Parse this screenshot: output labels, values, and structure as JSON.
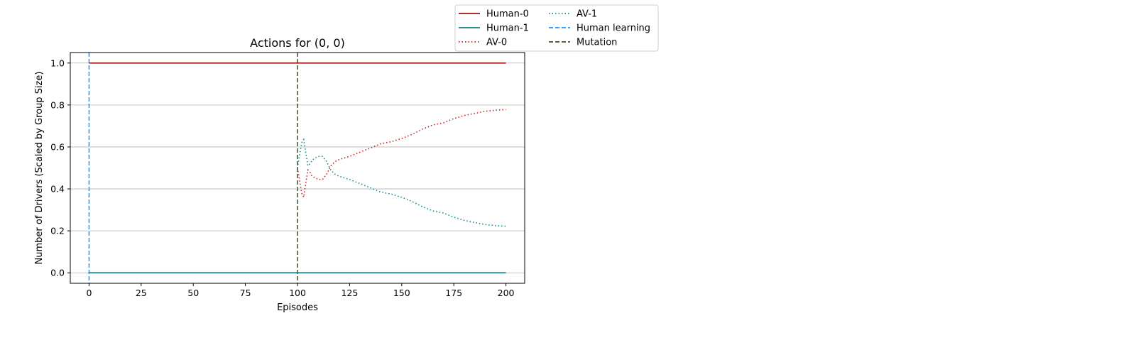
{
  "chart_data": {
    "type": "line",
    "title": "Actions for (0, 0)",
    "xlabel": "Episodes",
    "ylabel": "Number of Drivers (Scaled by Group Size)",
    "xlim": [
      -9,
      209
    ],
    "ylim": [
      -0.05,
      1.05
    ],
    "xticks": [
      0,
      25,
      50,
      75,
      100,
      125,
      150,
      175,
      200
    ],
    "yticks": [
      0.0,
      0.2,
      0.4,
      0.6,
      0.8,
      1.0
    ],
    "ytick_labels": [
      "0.0",
      "0.2",
      "0.4",
      "0.6",
      "0.8",
      "1.0"
    ],
    "grid": "horizontal",
    "legend_position": "outside-top-right",
    "series": [
      {
        "name": "Human-0",
        "color": "#a01010",
        "style": "solid",
        "x": [
          0,
          200
        ],
        "y": [
          1.0,
          1.0
        ]
      },
      {
        "name": "Human-1",
        "color": "#0f7f85",
        "style": "solid",
        "x": [
          0,
          200
        ],
        "y": [
          0.0,
          0.0
        ]
      },
      {
        "name": "AV-0",
        "color": "#cc1f1f",
        "style": "dotted",
        "x": [
          100,
          101,
          102,
          103,
          104,
          105,
          106,
          107,
          108,
          110,
          112,
          114,
          116,
          118,
          120,
          125,
          130,
          135,
          140,
          145,
          150,
          155,
          160,
          165,
          170,
          175,
          180,
          185,
          190,
          195,
          200
        ],
        "y": [
          0.5,
          0.44,
          0.38,
          0.36,
          0.43,
          0.49,
          0.48,
          0.46,
          0.455,
          0.445,
          0.445,
          0.47,
          0.51,
          0.53,
          0.54,
          0.555,
          0.575,
          0.595,
          0.615,
          0.625,
          0.64,
          0.66,
          0.685,
          0.705,
          0.715,
          0.735,
          0.75,
          0.76,
          0.77,
          0.775,
          0.778
        ]
      },
      {
        "name": "AV-1",
        "color": "#0f8a90",
        "style": "dotted",
        "x": [
          100,
          101,
          102,
          103,
          104,
          105,
          106,
          107,
          108,
          110,
          112,
          114,
          116,
          118,
          120,
          125,
          130,
          135,
          140,
          145,
          150,
          155,
          160,
          165,
          170,
          175,
          180,
          185,
          190,
          195,
          200
        ],
        "y": [
          0.5,
          0.56,
          0.62,
          0.635,
          0.57,
          0.51,
          0.52,
          0.535,
          0.545,
          0.555,
          0.555,
          0.53,
          0.49,
          0.47,
          0.46,
          0.445,
          0.425,
          0.405,
          0.385,
          0.375,
          0.36,
          0.34,
          0.315,
          0.295,
          0.285,
          0.265,
          0.25,
          0.24,
          0.23,
          0.225,
          0.222
        ]
      }
    ],
    "vlines": [
      {
        "name": "Human learning",
        "x": 0,
        "color": "#1e90ff",
        "style": "dashed"
      },
      {
        "name": "Mutation",
        "x": 100,
        "color": "#3a5220",
        "style": "dashed"
      }
    ],
    "legend": [
      {
        "label": "Human-0",
        "color": "#a01010",
        "style": "solid"
      },
      {
        "label": "Human-1",
        "color": "#0f7f85",
        "style": "solid"
      },
      {
        "label": "AV-0",
        "color": "#cc1f1f",
        "style": "dotted"
      },
      {
        "label": "AV-1",
        "color": "#0f8a90",
        "style": "dotted"
      },
      {
        "label": "Human learning",
        "color": "#1e90ff",
        "style": "dashed"
      },
      {
        "label": "Mutation",
        "color": "#3a5220",
        "style": "dashed"
      }
    ]
  }
}
